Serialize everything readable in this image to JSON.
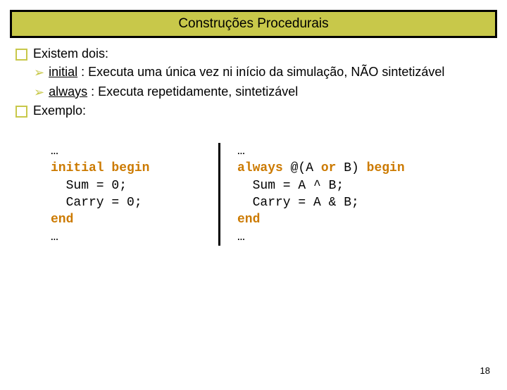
{
  "title": "Construções Procedurais",
  "bullets": {
    "b1": "Existem dois:",
    "b2": "Exemplo:"
  },
  "sub": {
    "s1_u": "initial",
    "s1_rest": " : Executa uma única vez ni início da simulação, NÃO sintetizável",
    "s2_u": "always",
    "s2_rest": " : Executa repetidamente, sintetizável"
  },
  "code": {
    "left": {
      "l1": "…",
      "kw1": "initial",
      "kw1b": " begin",
      "l3": "  Sum = 0;",
      "l4": "  Carry = 0;",
      "kw2": "end",
      "l6": "…"
    },
    "right": {
      "r1": "…",
      "kw1": "always",
      "kw1b": " @(A ",
      "kw_or": "or",
      "kw1c": " B) ",
      "kw_begin": "begin",
      "r3": "  Sum = A ^ B;",
      "r4": "  Carry = A & B;",
      "kw_end": "end",
      "r6": "…"
    }
  },
  "page": "18",
  "colors": {
    "accent": "#c8c84a",
    "keyword": "#cc7a00",
    "border": "#000000"
  }
}
